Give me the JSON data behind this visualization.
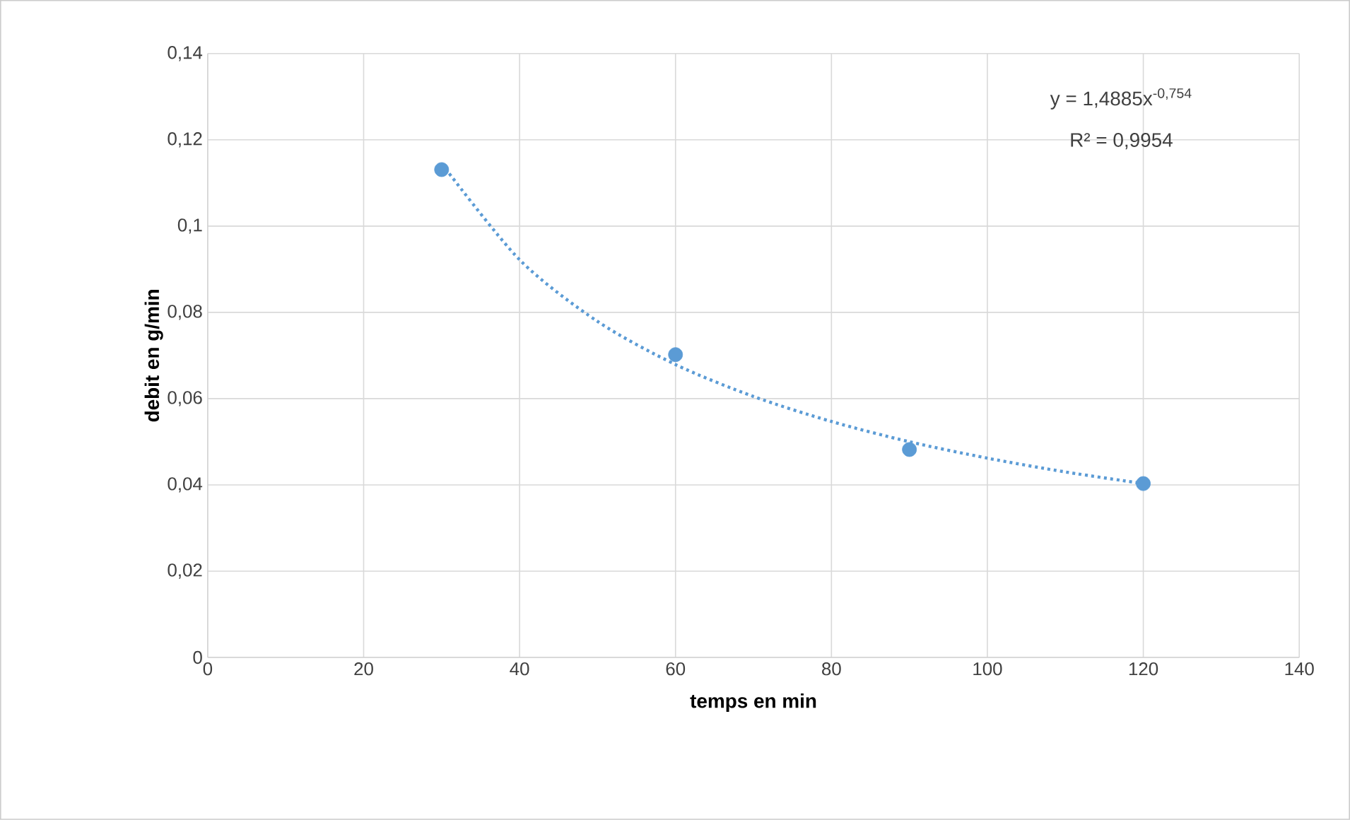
{
  "chart_data": {
    "type": "scatter",
    "xlabel": "temps en min",
    "ylabel": "debit en g/min",
    "series": [
      {
        "color": "#5b9bd5",
        "marker": "circle",
        "x": [
          30,
          60,
          90,
          120
        ],
        "values": [
          0.1131,
          0.0702,
          0.0482,
          0.0403
        ]
      },
      {
        "type": "line",
        "color": "#5b9bd5",
        "line_style": "dotted",
        "marker": "none",
        "x": [
          30,
          40,
          50,
          60,
          70,
          80,
          90,
          100,
          110,
          120
        ],
        "values": [
          0.1145,
          0.0922,
          0.0779,
          0.0679,
          0.0605,
          0.0547,
          0.05,
          0.0462,
          0.043,
          0.0403
        ]
      }
    ],
    "xlim": [
      0,
      140
    ],
    "xticks": [
      0,
      20,
      40,
      60,
      80,
      100,
      120,
      140
    ],
    "ylim": [
      0,
      0.14
    ],
    "yticks": [
      0,
      {
        "value": 0.02,
        "label": "0,02"
      },
      {
        "value": 0.04,
        "label": "0,04"
      },
      {
        "value": 0.06,
        "label": "0,06"
      },
      {
        "value": 0.08,
        "label": "0,08"
      },
      {
        "value": 0.1,
        "label": "0,1"
      },
      {
        "value": 0.12,
        "label": "0,12"
      },
      {
        "value": 0.14,
        "label": "0,14"
      }
    ],
    "grid": true,
    "annotations": [
      "y = 1,4885x$^{-0,754}$",
      "R² = 0,9954"
    ]
  }
}
